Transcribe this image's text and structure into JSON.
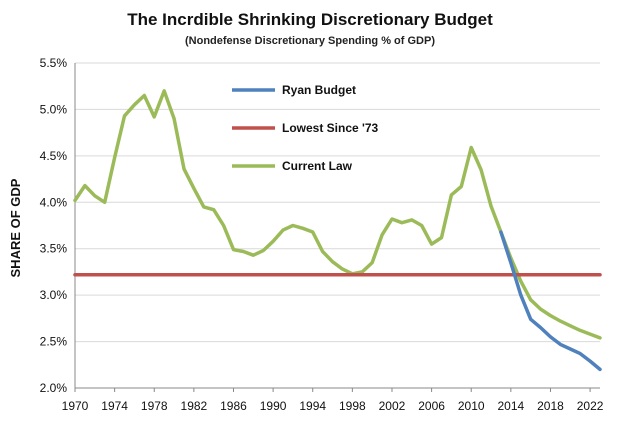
{
  "chart_data": {
    "type": "line",
    "title": "The Incrdible Shrinking Discretionary Budget",
    "subtitle": "(Nondefense Discretionary Spending % of GDP)",
    "ylabel": "SHARE OF GDP",
    "xlabel": "",
    "xlim": [
      1970,
      2023
    ],
    "ylim": [
      2.0,
      5.5
    ],
    "grid": "horizontal",
    "legend_position": "top-center",
    "x_ticks": [
      "1970",
      "1974",
      "1978",
      "1982",
      "1986",
      "1990",
      "1994",
      "1998",
      "2002",
      "2006",
      "2010",
      "2014",
      "2018",
      "2022"
    ],
    "y_ticks": [
      "2.0%",
      "2.5%",
      "3.0%",
      "3.5%",
      "4.0%",
      "4.5%",
      "5.0%",
      "5.5%"
    ],
    "series": [
      {
        "name": "Ryan Budget",
        "color": "#4f81bd",
        "x": [
          2013,
          2014,
          2015,
          2016,
          2017,
          2018,
          2019,
          2020,
          2021,
          2022,
          2023
        ],
        "y": [
          3.68,
          3.35,
          3.0,
          2.74,
          2.65,
          2.55,
          2.47,
          2.42,
          2.37,
          2.29,
          2.2
        ]
      },
      {
        "name": "Lowest Since '73",
        "color": "#c0504d",
        "x": [
          1970,
          2023
        ],
        "y": [
          3.22,
          3.22
        ]
      },
      {
        "name": "Current Law",
        "color": "#9bbb59",
        "x": [
          1970,
          1971,
          1972,
          1973,
          1974,
          1975,
          1976,
          1977,
          1978,
          1979,
          1980,
          1981,
          1982,
          1983,
          1984,
          1985,
          1986,
          1987,
          1988,
          1989,
          1990,
          1991,
          1992,
          1993,
          1994,
          1995,
          1996,
          1997,
          1998,
          1999,
          2000,
          2001,
          2002,
          2003,
          2004,
          2005,
          2006,
          2007,
          2008,
          2009,
          2010,
          2011,
          2012,
          2013,
          2014,
          2015,
          2016,
          2017,
          2018,
          2019,
          2020,
          2021,
          2022,
          2023
        ],
        "y": [
          4.02,
          4.18,
          4.07,
          4.0,
          4.48,
          4.93,
          5.05,
          5.15,
          4.92,
          5.2,
          4.9,
          4.36,
          4.15,
          3.95,
          3.92,
          3.75,
          3.49,
          3.47,
          3.43,
          3.48,
          3.58,
          3.7,
          3.75,
          3.72,
          3.68,
          3.47,
          3.36,
          3.28,
          3.23,
          3.25,
          3.35,
          3.65,
          3.82,
          3.78,
          3.81,
          3.75,
          3.55,
          3.62,
          4.08,
          4.17,
          4.59,
          4.35,
          3.96,
          3.68,
          3.4,
          3.15,
          2.95,
          2.85,
          2.78,
          2.72,
          2.67,
          2.62,
          2.58,
          2.54
        ]
      }
    ]
  }
}
